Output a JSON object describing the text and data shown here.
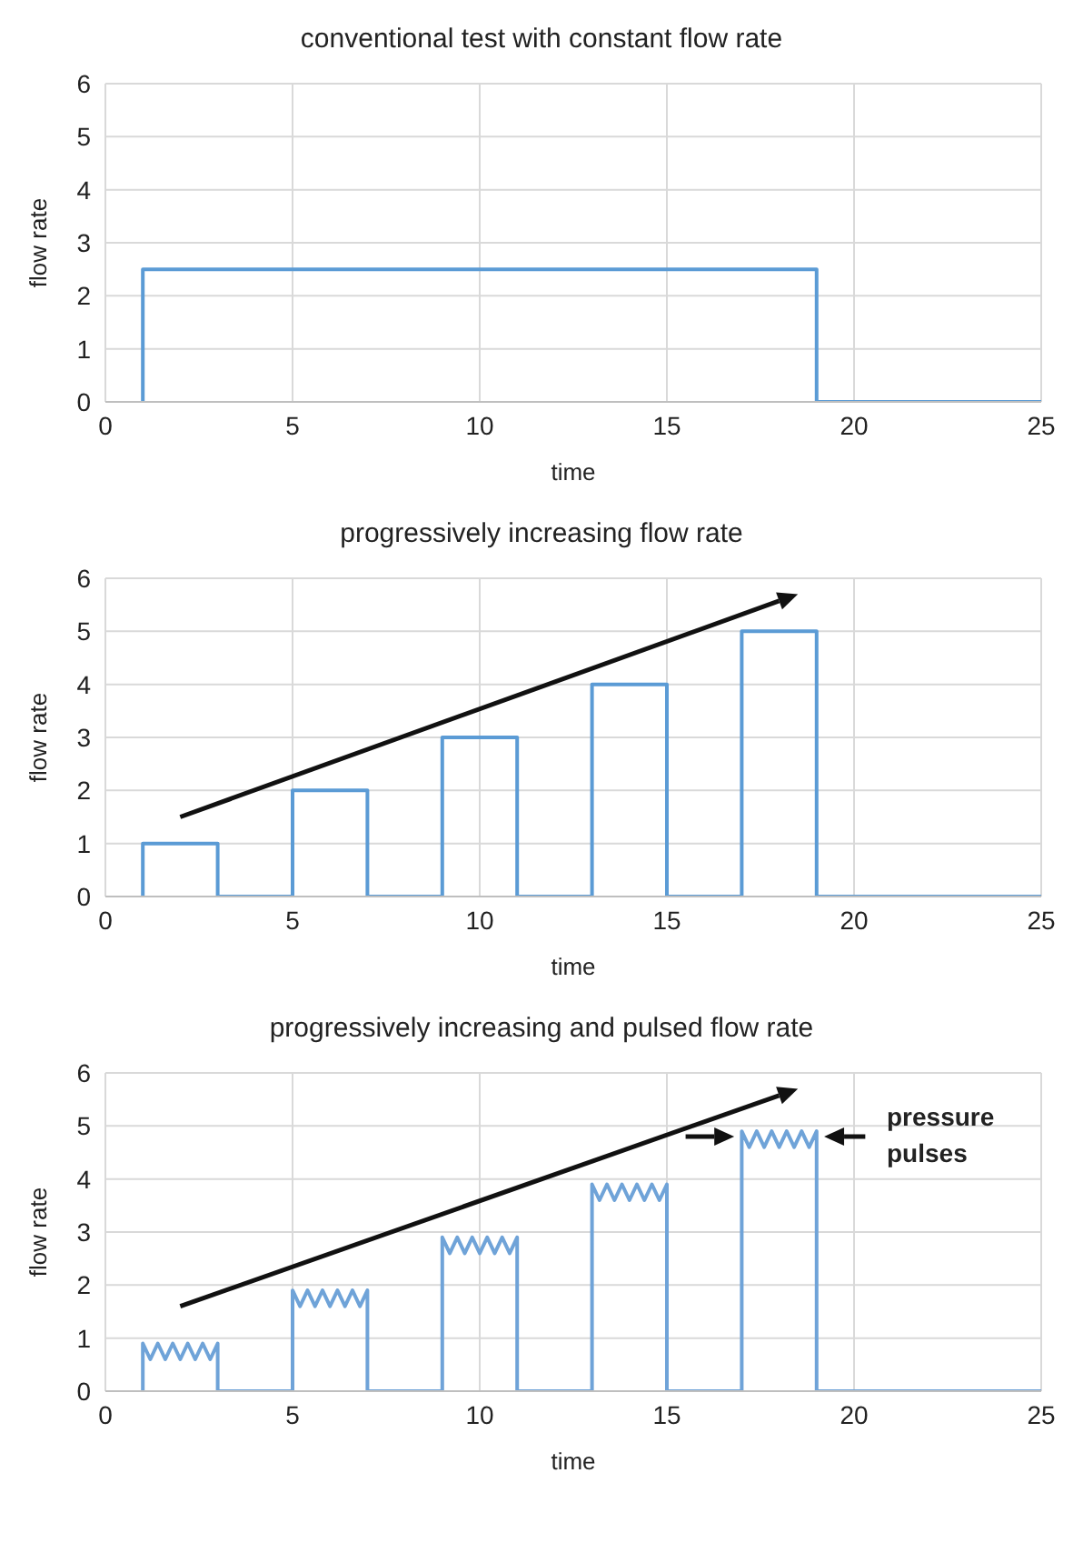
{
  "chart_data": [
    {
      "type": "line",
      "title": "conventional test with constant flow rate",
      "xlabel": "time",
      "ylabel": "flow rate",
      "xlim": [
        0,
        25
      ],
      "xticks": [
        0,
        5,
        10,
        15,
        20,
        25
      ],
      "ylim": [
        0,
        6
      ],
      "yticks": [
        0,
        1,
        2,
        3,
        4,
        5,
        6
      ],
      "grid": true,
      "marker": "none",
      "line_style": "solid",
      "series": [
        {
          "color": "#5b9bd5",
          "x": [
            1,
            1,
            19,
            19,
            25
          ],
          "values": [
            0,
            2.5,
            2.5,
            0,
            0
          ]
        }
      ]
    },
    {
      "type": "line",
      "title": "progressively increasing flow rate",
      "xlabel": "time",
      "ylabel": "flow rate",
      "xlim": [
        0,
        25
      ],
      "xticks": [
        0,
        5,
        10,
        15,
        20,
        25
      ],
      "ylim": [
        0,
        6
      ],
      "yticks": [
        0,
        1,
        2,
        3,
        4,
        5,
        6
      ],
      "grid": true,
      "marker": "none",
      "line_style": "solid",
      "series": [
        {
          "color": "#5b9bd5",
          "x": [
            1,
            1,
            3,
            3,
            5,
            5,
            7,
            7,
            9,
            9,
            11,
            11,
            13,
            13,
            15,
            15,
            17,
            17,
            19,
            19,
            25
          ],
          "values": [
            0,
            1,
            1,
            0,
            0,
            2,
            2,
            0,
            0,
            3,
            3,
            0,
            0,
            4,
            4,
            0,
            0,
            5,
            5,
            0,
            0
          ]
        }
      ]
    },
    {
      "type": "line",
      "title": "progressively increasing and pulsed flow rate",
      "xlabel": "time",
      "ylabel": "flow rate",
      "xlim": [
        0,
        25
      ],
      "xticks": [
        0,
        5,
        10,
        15,
        20,
        25
      ],
      "ylim": [
        0,
        6
      ],
      "yticks": [
        0,
        1,
        2,
        3,
        4,
        5,
        6
      ],
      "grid": true,
      "marker": "none",
      "line_style": "solid",
      "annotations": [
        "pressure pulses"
      ],
      "series": [
        {
          "color": "#6fa3d8",
          "x": [
            1,
            1,
            1.2,
            1.4,
            1.6,
            1.8,
            2,
            2.2,
            2.4,
            2.6,
            2.8,
            3,
            3,
            5,
            5,
            5.2,
            5.4,
            5.6,
            5.8,
            6,
            6.2,
            6.4,
            6.6,
            6.8,
            7,
            7,
            9,
            9,
            9.2,
            9.4,
            9.6,
            9.8,
            10,
            10.2,
            10.4,
            10.6,
            10.8,
            11,
            11,
            13,
            13,
            13.2,
            13.4,
            13.6,
            13.8,
            14,
            14.2,
            14.4,
            14.6,
            14.8,
            15,
            15,
            17,
            17,
            17.2,
            17.4,
            17.6,
            17.8,
            18,
            18.2,
            18.4,
            18.6,
            18.8,
            19,
            19,
            25
          ],
          "values": [
            0,
            0.9,
            0.6,
            0.9,
            0.6,
            0.9,
            0.6,
            0.9,
            0.6,
            0.9,
            0.6,
            0.9,
            0,
            0,
            1.9,
            1.6,
            1.9,
            1.6,
            1.9,
            1.6,
            1.9,
            1.6,
            1.9,
            1.6,
            1.9,
            0,
            0,
            2.9,
            2.6,
            2.9,
            2.6,
            2.9,
            2.6,
            2.9,
            2.6,
            2.9,
            2.6,
            2.9,
            0,
            0,
            3.9,
            3.6,
            3.9,
            3.6,
            3.9,
            3.6,
            3.9,
            3.6,
            3.9,
            3.6,
            3.9,
            0,
            0,
            4.9,
            4.6,
            4.9,
            4.6,
            4.9,
            4.6,
            4.9,
            4.6,
            4.9,
            4.6,
            4.9,
            0,
            0
          ]
        }
      ]
    }
  ]
}
